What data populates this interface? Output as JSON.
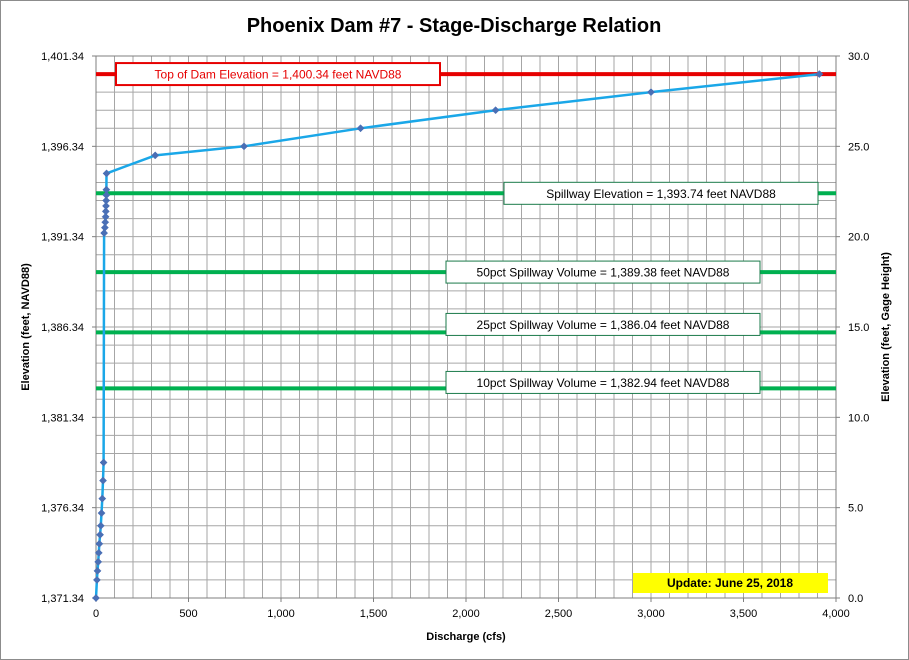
{
  "chart_data": {
    "type": "line",
    "title": "Phoenix Dam #7 - Stage-Discharge Relation",
    "xlabel": "Discharge  (cfs)",
    "ylabel_left": "Elevation  (feet, NAVD88)",
    "ylabel_right": "Elevation  (feet, Gage Height)",
    "xlim": [
      0,
      4000
    ],
    "ylim_left": [
      1371.34,
      1401.34
    ],
    "ylim_right": [
      0,
      30
    ],
    "x_ticks": [
      "0",
      "500",
      "1,000",
      "1,500",
      "2,000",
      "2,500",
      "3,000",
      "3,500",
      "4,000"
    ],
    "y_left_ticks": [
      "1,371.34",
      "1,376.34",
      "1,381.34",
      "1,386.34",
      "1,391.34",
      "1,396.34",
      "1,401.34"
    ],
    "y_right_ticks": [
      "0.0",
      "5.0",
      "10.0",
      "15.0",
      "20.0",
      "25.0",
      "30.0"
    ],
    "grid": true,
    "series": [
      {
        "x": [
          0,
          5,
          8,
          12,
          15,
          18,
          22,
          26,
          30,
          34,
          38,
          41,
          44,
          48,
          50,
          52,
          53,
          54,
          55,
          56,
          56,
          57,
          320,
          800,
          1430,
          2160,
          3000,
          3910
        ],
        "y": [
          1371.34,
          1372.34,
          1372.84,
          1373.34,
          1373.84,
          1374.34,
          1374.84,
          1375.34,
          1376.04,
          1376.84,
          1377.84,
          1378.84,
          1391.54,
          1391.84,
          1392.14,
          1392.44,
          1392.74,
          1393.04,
          1393.34,
          1393.64,
          1393.94,
          1394.84,
          1395.84,
          1396.34,
          1397.34,
          1398.34,
          1399.34,
          1400.34
        ],
        "color": "#1aa7e8",
        "marker_color": "#4a6fb5"
      }
    ],
    "reference_lines": [
      {
        "label": "Top of Dam Elevation = 1,400.34  feet NAVD88",
        "elevation": 1400.34,
        "color": "#e60000",
        "box_border": "#e60000",
        "text_color": "#e60000"
      },
      {
        "label": "Spillway Elevation = 1,393.74  feet NAVD88",
        "elevation": 1393.74,
        "color": "#00b050",
        "box_border": "#1a7a4a",
        "text_color": "#000000"
      },
      {
        "label": "50pct Spillway Volume = 1,389.38  feet NAVD88",
        "elevation": 1389.38,
        "color": "#00b050",
        "box_border": "#1a7a4a",
        "text_color": "#000000"
      },
      {
        "label": "25pct Spillway Volume = 1,386.04  feet NAVD88",
        "elevation": 1386.04,
        "color": "#00b050",
        "box_border": "#1a7a4a",
        "text_color": "#000000"
      },
      {
        "label": "10pct Spillway Volume = 1,382.94  feet NAVD88",
        "elevation": 1382.94,
        "color": "#00b050",
        "box_border": "#1a7a4a",
        "text_color": "#000000"
      }
    ],
    "update_note": {
      "text": "Update: June 25, 2018",
      "background": "#ffff00"
    }
  }
}
